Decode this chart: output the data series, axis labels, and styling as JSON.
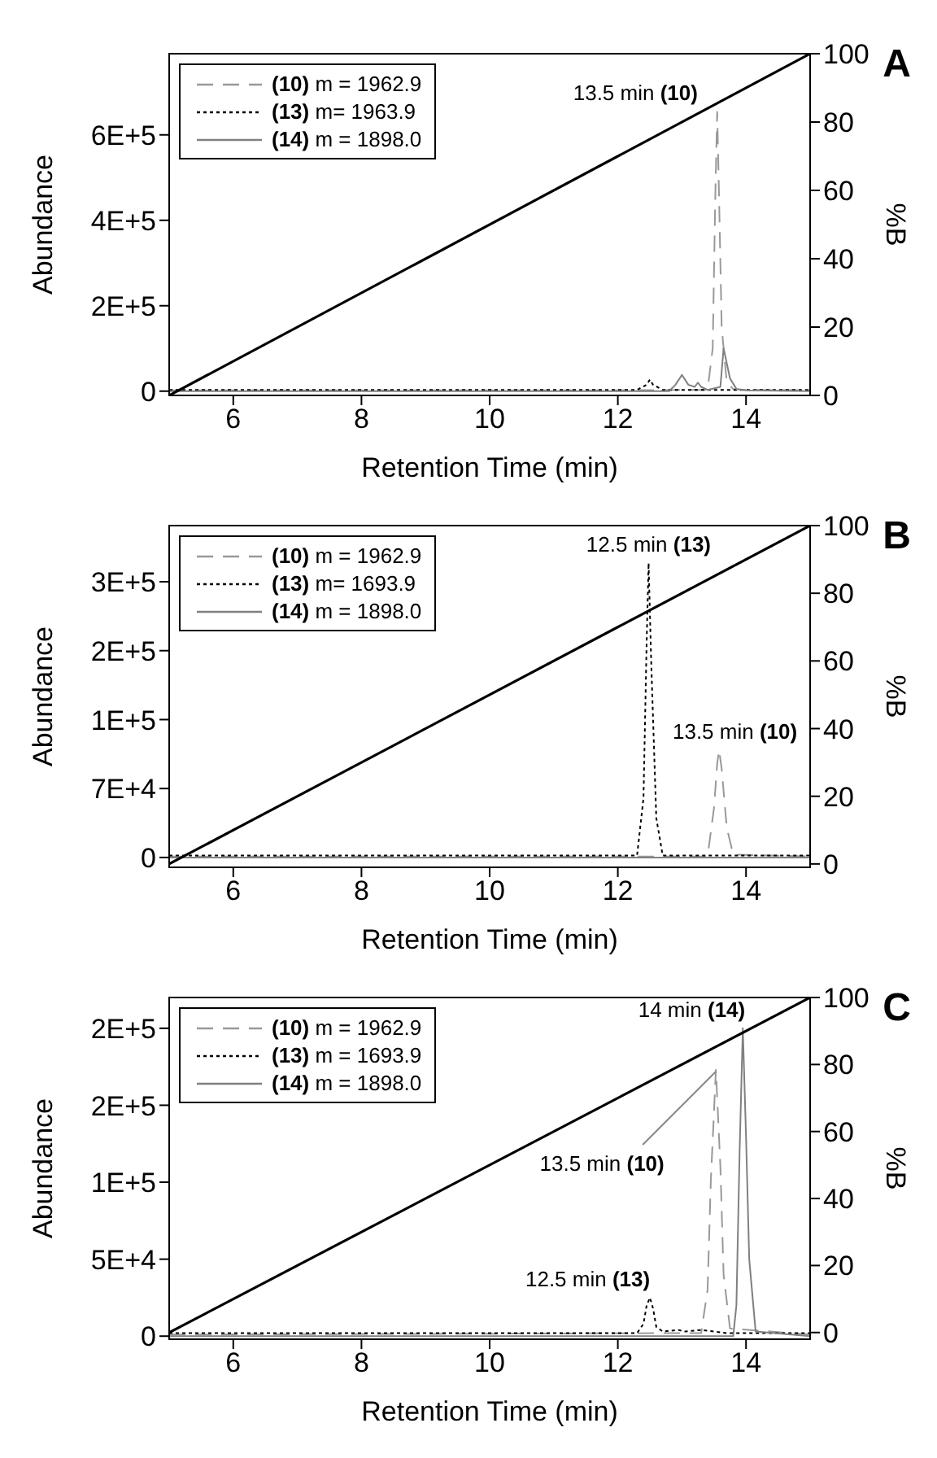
{
  "chart_data": [
    {
      "type": "line",
      "title": "A",
      "xlabel": "Retention Time (min)",
      "ylabel": "Abundance",
      "y2label": "%B",
      "xlim": [
        5,
        15
      ],
      "xticks": [
        6,
        8,
        10,
        12,
        14
      ],
      "ylim": [
        -10000,
        790000
      ],
      "yticks": [
        {
          "value": 0,
          "label": "0"
        },
        {
          "value": 200000,
          "label": "2E+5"
        },
        {
          "value": 400000,
          "label": "4E+5"
        },
        {
          "value": 600000,
          "label": "6E+5"
        }
      ],
      "y2lim": [
        0,
        100
      ],
      "y2ticks": [
        0,
        20,
        40,
        60,
        80,
        100
      ],
      "legend": "top left",
      "series": [
        {
          "name": "(10) m = 1962.9",
          "color": "#999999",
          "line_style": "dashed",
          "x": [
            5,
            12,
            13.4,
            13.48,
            13.52,
            13.55,
            13.58,
            13.62,
            13.7,
            13.8,
            14,
            15
          ],
          "values": [
            2000,
            2000,
            3000,
            100000,
            450000,
            654000,
            450000,
            150000,
            20000,
            5000,
            3000,
            2000
          ]
        },
        {
          "name": "(13) m= 1963.9",
          "color": "#000000",
          "line_style": "dotted",
          "x": [
            5,
            12.3,
            12.45,
            12.5,
            12.55,
            12.7,
            15
          ],
          "values": [
            3000,
            3000,
            15000,
            27000,
            15000,
            3000,
            3000
          ]
        },
        {
          "name": "(14) m = 1898.0",
          "color": "#808080",
          "line_style": "solid",
          "x": [
            5,
            12.8,
            12.9,
            13,
            13.1,
            13.2,
            13.25,
            13.3,
            13.4,
            13.6,
            13.65,
            13.75,
            13.85,
            14,
            15
          ],
          "values": [
            0,
            0,
            15000,
            38000,
            15000,
            10000,
            20000,
            10000,
            3000,
            10000,
            100000,
            30000,
            5000,
            2000,
            0
          ]
        },
        {
          "color": "#000000",
          "line_style": "solid",
          "axis": "y2",
          "x": [
            5,
            15
          ],
          "values": [
            0,
            100
          ]
        }
      ],
      "annotations": [
        {
          "text": "13.5 min (10)",
          "x": 13.55,
          "y": 654000
        }
      ]
    },
    {
      "type": "line",
      "title": "B",
      "xlabel": "Retention Time (min)",
      "ylabel": "Abundance",
      "y2label": "%B",
      "xlim": [
        5,
        15
      ],
      "xticks": [
        6,
        8,
        10,
        12,
        14
      ],
      "ylim": [
        -10000,
        337000
      ],
      "yticks": [
        {
          "value": 0,
          "label": "0"
        },
        {
          "value": 70000,
          "label": "7E+4"
        },
        {
          "value": 140000,
          "label": "1E+5"
        },
        {
          "value": 210000,
          "label": "2E+5"
        },
        {
          "value": 280000,
          "label": "3E+5"
        }
      ],
      "y2lim": [
        -1,
        100
      ],
      "y2ticks": [
        0,
        20,
        40,
        60,
        80,
        100
      ],
      "legend": "top left",
      "series": [
        {
          "name": "(10) m = 1962.9",
          "color": "#999999",
          "line_style": "dashed",
          "x": [
            5,
            13.4,
            13.5,
            13.55,
            13.58,
            13.62,
            13.7,
            13.8,
            15
          ],
          "values": [
            1000,
            1000,
            50000,
            95000,
            109000,
            90000,
            30000,
            3000,
            1000
          ]
        },
        {
          "name": "(13) m= 1693.9",
          "color": "#000000",
          "line_style": "dotted",
          "x": [
            5,
            12.3,
            12.4,
            12.45,
            12.48,
            12.52,
            12.6,
            12.7,
            15
          ],
          "values": [
            2000,
            2000,
            60000,
            220000,
            299000,
            200000,
            40000,
            2000,
            2000
          ]
        },
        {
          "name": "(14) m = 1898.0",
          "color": "#808080",
          "line_style": "solid",
          "x": [
            5,
            15
          ],
          "values": [
            0,
            0
          ]
        },
        {
          "color": "#000000",
          "line_style": "solid",
          "axis": "y2",
          "x": [
            5,
            15
          ],
          "values": [
            0,
            100
          ]
        }
      ],
      "annotations": [
        {
          "text": "12.5 min (13)",
          "x": 12.48,
          "y": 299000
        },
        {
          "text": "13.5 min (10)",
          "x": 13.58,
          "y": 109000
        }
      ]
    },
    {
      "type": "line",
      "title": "C",
      "xlabel": "Retention Time (min)",
      "ylabel": "Abundance",
      "y2label": "%B",
      "xlim": [
        5,
        15
      ],
      "xticks": [
        6,
        8,
        10,
        12,
        14
      ],
      "ylim": [
        -2000,
        220000
      ],
      "yticks": [
        {
          "value": 0,
          "label": "0"
        },
        {
          "value": 50000,
          "label": "5E+4"
        },
        {
          "value": 100000,
          "label": "1E+5"
        },
        {
          "value": 150000,
          "label": "2E+5"
        },
        {
          "value": 200000,
          "label": "2E+5"
        }
      ],
      "y2lim": [
        -2,
        100
      ],
      "y2ticks": [
        0,
        20,
        40,
        60,
        80,
        100
      ],
      "legend": "top left",
      "series": [
        {
          "name": "(10) m = 1962.9",
          "color": "#999999",
          "line_style": "dashed",
          "x": [
            5,
            13.3,
            13.4,
            13.45,
            13.53,
            13.6,
            13.65,
            13.75,
            15
          ],
          "values": [
            1000,
            2000,
            30000,
            100000,
            173000,
            110000,
            40000,
            5000,
            1000
          ]
        },
        {
          "name": "(13) m = 1693.9",
          "color": "#000000",
          "line_style": "dotted",
          "x": [
            5,
            12.3,
            12.4,
            12.45,
            12.5,
            12.55,
            12.6,
            12.7,
            12.95,
            13.05,
            13.3,
            13.5,
            13.7,
            15
          ],
          "values": [
            2000,
            2000,
            8000,
            20000,
            25000,
            18000,
            6000,
            3000,
            4000,
            3000,
            4000,
            3000,
            2000,
            2000
          ]
        },
        {
          "name": "(14) m = 1898.0",
          "color": "#808080",
          "line_style": "solid",
          "x": [
            5,
            13.8,
            13.85,
            13.9,
            13.95,
            14,
            14.05,
            14.15,
            15
          ],
          "values": [
            0,
            0,
            20000,
            120000,
            200000,
            130000,
            50000,
            3000,
            0
          ]
        },
        {
          "color": "#000000",
          "line_style": "solid",
          "axis": "y2",
          "x": [
            5,
            15
          ],
          "values": [
            0,
            100
          ]
        }
      ],
      "annotations": [
        {
          "text": "14 min (14)",
          "x": 13.95,
          "y": 200000
        },
        {
          "text": "13.5 min (10)",
          "x": 13.53,
          "y": 173000
        },
        {
          "text": "12.5 min (13)",
          "x": 12.5,
          "y": 25000
        }
      ]
    }
  ]
}
